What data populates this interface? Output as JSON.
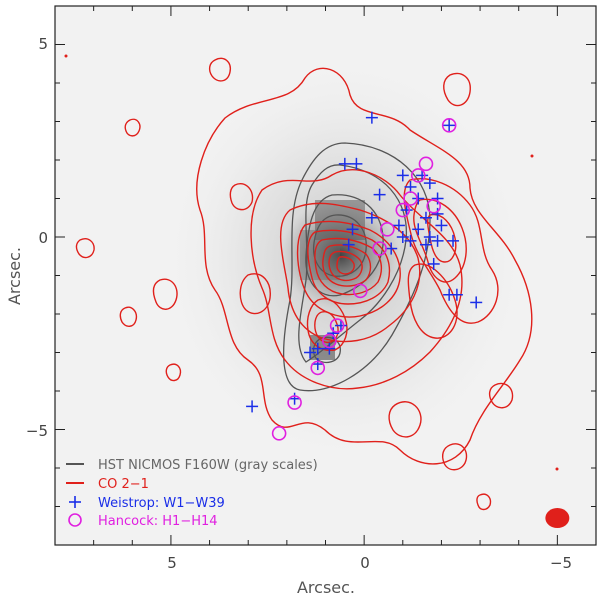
{
  "chart_data": {
    "type": "scatter",
    "title": "",
    "xlabel": "Arcsec.",
    "ylabel": "Arcsec.",
    "xlim": [
      8,
      -6
    ],
    "ylim": [
      -8,
      6
    ],
    "x_ticks": [
      5,
      0,
      -5
    ],
    "x_tick_labels": [
      "5",
      "0",
      "−5"
    ],
    "y_ticks": [
      5,
      0,
      -5
    ],
    "y_tick_labels": [
      "5",
      "0",
      "−5"
    ],
    "grid": false,
    "legend_placement": "bottom-left",
    "colors": {
      "hst": "#555555",
      "co": "#e0201b",
      "weistrop": "#1a2ee8",
      "hancock": "#e020e0",
      "background": "#f2f2f2"
    },
    "series": [
      {
        "name": "HST NICMOS F160W (gray scales)",
        "kind": "gray-image-contours",
        "color": "#555555"
      },
      {
        "name": "CO 2−1",
        "kind": "contours",
        "color": "#e0201b"
      },
      {
        "name": "Weistrop: W1−W39",
        "kind": "plus",
        "color": "#1a2ee8",
        "points": [
          [
            -0.2,
            3.1
          ],
          [
            -2.2,
            2.9
          ],
          [
            0.5,
            1.9
          ],
          [
            0.2,
            1.9
          ],
          [
            -1.0,
            1.6
          ],
          [
            -1.5,
            1.6
          ],
          [
            -0.4,
            1.1
          ],
          [
            -1.2,
            1.3
          ],
          [
            -1.7,
            1.4
          ],
          [
            -1.9,
            1.0
          ],
          [
            -1.4,
            1.0
          ],
          [
            -1.1,
            0.7
          ],
          [
            -1.6,
            0.5
          ],
          [
            -1.9,
            0.6
          ],
          [
            -2.0,
            0.3
          ],
          [
            -1.4,
            0.2
          ],
          [
            -1.7,
            0.0
          ],
          [
            -1.2,
            -0.1
          ],
          [
            -1.6,
            -0.2
          ],
          [
            -1.9,
            -0.1
          ],
          [
            -2.3,
            -0.1
          ],
          [
            -0.9,
            0.3
          ],
          [
            -1.0,
            0.0
          ],
          [
            -0.2,
            0.5
          ],
          [
            0.3,
            0.2
          ],
          [
            -0.7,
            -0.3
          ],
          [
            0.4,
            -0.2
          ],
          [
            -1.8,
            -0.7
          ],
          [
            -2.2,
            -1.5
          ],
          [
            -2.4,
            -1.5
          ],
          [
            -2.9,
            -1.7
          ],
          [
            0.6,
            -2.3
          ],
          [
            0.8,
            -2.5
          ],
          [
            0.9,
            -2.9
          ],
          [
            1.2,
            -2.9
          ],
          [
            1.4,
            -3.0
          ],
          [
            1.2,
            -3.3
          ],
          [
            2.9,
            -4.4
          ],
          [
            1.8,
            -4.2
          ]
        ]
      },
      {
        "name": "Hancock: H1−H14",
        "kind": "circle",
        "color": "#e020e0",
        "points": [
          [
            -2.2,
            2.9
          ],
          [
            -1.6,
            1.9
          ],
          [
            -1.4,
            1.6
          ],
          [
            -1.2,
            1.0
          ],
          [
            -1.0,
            0.7
          ],
          [
            -0.6,
            0.2
          ],
          [
            -0.4,
            -0.3
          ],
          [
            0.1,
            -1.4
          ],
          [
            0.7,
            -2.3
          ],
          [
            0.9,
            -2.7
          ],
          [
            1.2,
            -3.4
          ],
          [
            1.8,
            -4.3
          ],
          [
            2.2,
            -5.1
          ],
          [
            -1.8,
            0.8
          ]
        ]
      }
    ],
    "beam": {
      "x": -5.0,
      "y": -7.3,
      "color": "#e0201b"
    }
  }
}
